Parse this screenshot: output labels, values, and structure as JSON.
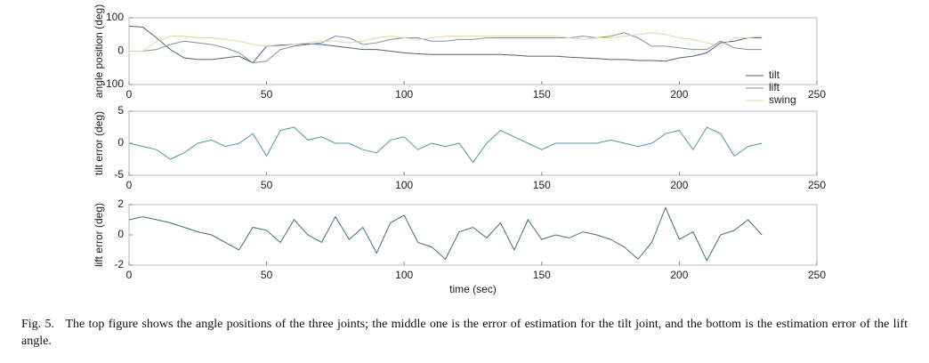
{
  "chart_data": [
    {
      "type": "line",
      "ylabel": "angle position (deg)",
      "x": [
        0,
        5,
        10,
        15,
        20,
        25,
        30,
        35,
        40,
        45,
        50,
        55,
        60,
        65,
        70,
        75,
        80,
        85,
        90,
        95,
        100,
        105,
        110,
        115,
        120,
        125,
        130,
        135,
        140,
        145,
        150,
        155,
        160,
        165,
        170,
        175,
        180,
        185,
        190,
        195,
        200,
        205,
        210,
        215,
        220,
        225,
        230
      ],
      "series": [
        {
          "name": "tilt",
          "color": "#4f6478",
          "values": [
            75,
            72,
            40,
            5,
            -20,
            -25,
            -25,
            -20,
            -15,
            -35,
            15,
            18,
            20,
            22,
            20,
            15,
            10,
            5,
            5,
            0,
            -5,
            -8,
            -10,
            -10,
            -10,
            -10,
            -10,
            -10,
            -12,
            -15,
            -15,
            -15,
            -18,
            -20,
            -22,
            -25,
            -25,
            -28,
            -28,
            -30,
            -20,
            -15,
            -5,
            25,
            30,
            40,
            40
          ]
        },
        {
          "name": "lift",
          "color": "#7b93a8",
          "values": [
            0,
            0,
            5,
            20,
            30,
            25,
            20,
            10,
            -5,
            -35,
            -30,
            5,
            15,
            20,
            25,
            45,
            40,
            20,
            25,
            35,
            40,
            40,
            30,
            30,
            35,
            35,
            40,
            40,
            40,
            40,
            40,
            40,
            40,
            45,
            40,
            45,
            55,
            40,
            15,
            15,
            10,
            5,
            5,
            30,
            10,
            5,
            5
          ]
        },
        {
          "name": "swing",
          "color": "#e3d6a4",
          "values": [
            0,
            0,
            30,
            45,
            45,
            40,
            40,
            35,
            30,
            20,
            15,
            15,
            20,
            25,
            30,
            30,
            25,
            30,
            40,
            45,
            40,
            35,
            40,
            45,
            45,
            45,
            45,
            45,
            45,
            45,
            45,
            45,
            40,
            35,
            40,
            40,
            45,
            50,
            55,
            50,
            40,
            35,
            25,
            15,
            40,
            40,
            45
          ]
        }
      ],
      "xlim": [
        0,
        250
      ],
      "xticks": [
        0,
        50,
        100,
        150,
        200,
        250
      ],
      "ylim": [
        -100,
        100
      ],
      "yticks": [
        -100,
        0,
        100
      ],
      "legend": "lower right"
    },
    {
      "type": "line",
      "ylabel": "tilt error (deg)",
      "x": [
        0,
        5,
        10,
        15,
        20,
        25,
        30,
        35,
        40,
        45,
        50,
        55,
        60,
        65,
        70,
        75,
        80,
        85,
        90,
        95,
        100,
        105,
        110,
        115,
        120,
        125,
        130,
        135,
        140,
        145,
        150,
        155,
        160,
        165,
        170,
        175,
        180,
        185,
        190,
        195,
        200,
        205,
        210,
        215,
        220,
        225,
        230
      ],
      "color": "#4e9aa6",
      "values": [
        0,
        -0.5,
        -1,
        -2.5,
        -1.5,
        0,
        0.5,
        -0.5,
        0,
        1.5,
        -2,
        2,
        2.5,
        0.5,
        1,
        0,
        0,
        -1,
        -1.5,
        0.5,
        1,
        -1,
        0,
        -0.5,
        0,
        -3,
        0,
        2,
        1,
        0,
        -1,
        0,
        0,
        0,
        0,
        0.5,
        0,
        -0.5,
        0,
        1.5,
        2,
        -1,
        2.5,
        1.5,
        -2,
        -0.5,
        0
      ],
      "xlim": [
        0,
        250
      ],
      "xticks": [
        0,
        50,
        100,
        150,
        200,
        250
      ],
      "ylim": [
        -5,
        5
      ],
      "yticks": [
        -5,
        0,
        5
      ]
    },
    {
      "type": "line",
      "ylabel": "lift error (deg)",
      "xlabel": "time (sec)",
      "x": [
        0,
        5,
        10,
        15,
        20,
        25,
        30,
        35,
        40,
        45,
        50,
        55,
        60,
        65,
        70,
        75,
        80,
        85,
        90,
        95,
        100,
        105,
        110,
        115,
        120,
        125,
        130,
        135,
        140,
        145,
        150,
        155,
        160,
        165,
        170,
        175,
        180,
        185,
        190,
        195,
        200,
        205,
        210,
        215,
        220,
        225,
        230
      ],
      "color": "#3f6f80",
      "values": [
        1,
        1.2,
        1,
        0.8,
        0.5,
        0.2,
        0,
        -0.5,
        -1,
        0.5,
        0.3,
        -0.5,
        1,
        0,
        -0.5,
        1.2,
        -0.3,
        0.5,
        -1.2,
        0.8,
        1.3,
        -0.5,
        -0.8,
        -1.6,
        0.2,
        0.5,
        -0.2,
        0.8,
        -1.0,
        1.0,
        -0.3,
        0,
        -0.2,
        0.2,
        0,
        -0.3,
        -0.8,
        -1.6,
        -0.5,
        1.8,
        -0.3,
        0.2,
        -1.7,
        0,
        0.3,
        1.0,
        0
      ],
      "xlim": [
        0,
        250
      ],
      "xticks": [
        0,
        50,
        100,
        150,
        200,
        250
      ],
      "ylim": [
        -2,
        2
      ],
      "yticks": [
        -2,
        0,
        2
      ]
    }
  ],
  "caption": "Fig. 5.   The top figure shows the angle positions of the three joints; the middle one is the error of estimation for the tilt joint, and the bottom is the estimation error of the lift angle."
}
